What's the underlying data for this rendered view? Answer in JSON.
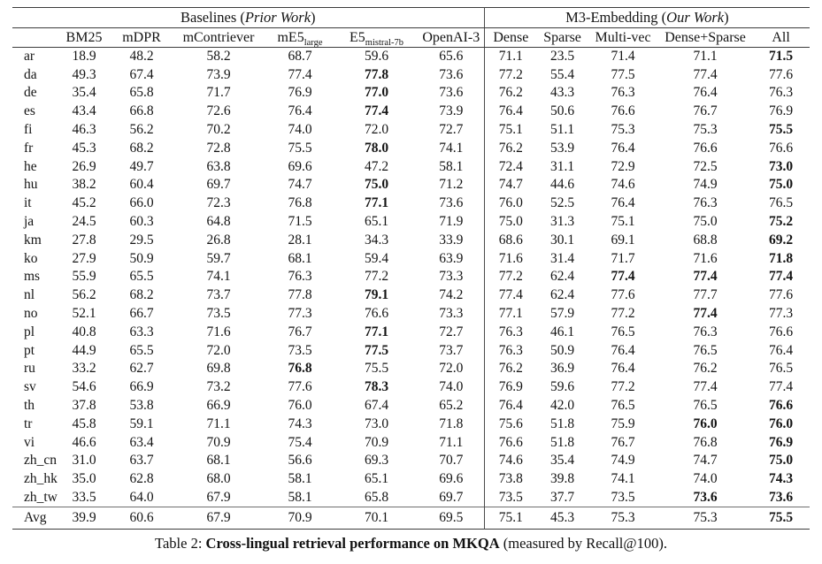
{
  "caption": {
    "prefix": "Table 2: ",
    "bold": "Cross-lingual retrieval performance on MKQA",
    "suffix": " (measured by Recall@100)."
  },
  "table": {
    "group_headers": {
      "baselines": {
        "pre": "Baselines (",
        "italic": "Prior Work",
        "post": ")"
      },
      "m3": {
        "pre": "M3-Embedding (",
        "italic": "Our Work",
        "post": ")"
      }
    },
    "columns": [
      {
        "label": "BM25",
        "sub": ""
      },
      {
        "label": "mDPR",
        "sub": ""
      },
      {
        "label": "mContriever",
        "sub": ""
      },
      {
        "label": "mE5",
        "sub": "large"
      },
      {
        "label": "E5",
        "sub": "mistral-7b"
      },
      {
        "label": "OpenAI-3",
        "sub": ""
      },
      {
        "label": "Dense",
        "sub": ""
      },
      {
        "label": "Sparse",
        "sub": ""
      },
      {
        "label": "Multi-vec",
        "sub": ""
      },
      {
        "label": "Dense+Sparse",
        "sub": ""
      },
      {
        "label": "All",
        "sub": ""
      }
    ],
    "rows": [
      {
        "lang": "ar",
        "values": [
          "18.9",
          "48.2",
          "58.2",
          "68.7",
          "59.6",
          "65.6",
          "71.1",
          "23.5",
          "71.4",
          "71.1",
          "71.5"
        ],
        "bold": [
          10
        ]
      },
      {
        "lang": "da",
        "values": [
          "49.3",
          "67.4",
          "73.9",
          "77.4",
          "77.8",
          "73.6",
          "77.2",
          "55.4",
          "77.5",
          "77.4",
          "77.6"
        ],
        "bold": [
          4
        ]
      },
      {
        "lang": "de",
        "values": [
          "35.4",
          "65.8",
          "71.7",
          "76.9",
          "77.0",
          "73.6",
          "76.2",
          "43.3",
          "76.3",
          "76.4",
          "76.3"
        ],
        "bold": [
          4
        ]
      },
      {
        "lang": "es",
        "values": [
          "43.4",
          "66.8",
          "72.6",
          "76.4",
          "77.4",
          "73.9",
          "76.4",
          "50.6",
          "76.6",
          "76.7",
          "76.9"
        ],
        "bold": [
          4
        ]
      },
      {
        "lang": "fi",
        "values": [
          "46.3",
          "56.2",
          "70.2",
          "74.0",
          "72.0",
          "72.7",
          "75.1",
          "51.1",
          "75.3",
          "75.3",
          "75.5"
        ],
        "bold": [
          10
        ]
      },
      {
        "lang": "fr",
        "values": [
          "45.3",
          "68.2",
          "72.8",
          "75.5",
          "78.0",
          "74.1",
          "76.2",
          "53.9",
          "76.4",
          "76.6",
          "76.6"
        ],
        "bold": [
          4
        ]
      },
      {
        "lang": "he",
        "values": [
          "26.9",
          "49.7",
          "63.8",
          "69.6",
          "47.2",
          "58.1",
          "72.4",
          "31.1",
          "72.9",
          "72.5",
          "73.0"
        ],
        "bold": [
          10
        ]
      },
      {
        "lang": "hu",
        "values": [
          "38.2",
          "60.4",
          "69.7",
          "74.7",
          "75.0",
          "71.2",
          "74.7",
          "44.6",
          "74.6",
          "74.9",
          "75.0"
        ],
        "bold": [
          4,
          10
        ]
      },
      {
        "lang": "it",
        "values": [
          "45.2",
          "66.0",
          "72.3",
          "76.8",
          "77.1",
          "73.6",
          "76.0",
          "52.5",
          "76.4",
          "76.3",
          "76.5"
        ],
        "bold": [
          4
        ]
      },
      {
        "lang": "ja",
        "values": [
          "24.5",
          "60.3",
          "64.8",
          "71.5",
          "65.1",
          "71.9",
          "75.0",
          "31.3",
          "75.1",
          "75.0",
          "75.2"
        ],
        "bold": [
          10
        ]
      },
      {
        "lang": "km",
        "values": [
          "27.8",
          "29.5",
          "26.8",
          "28.1",
          "34.3",
          "33.9",
          "68.6",
          "30.1",
          "69.1",
          "68.8",
          "69.2"
        ],
        "bold": [
          10
        ]
      },
      {
        "lang": "ko",
        "values": [
          "27.9",
          "50.9",
          "59.7",
          "68.1",
          "59.4",
          "63.9",
          "71.6",
          "31.4",
          "71.7",
          "71.6",
          "71.8"
        ],
        "bold": [
          10
        ]
      },
      {
        "lang": "ms",
        "values": [
          "55.9",
          "65.5",
          "74.1",
          "76.3",
          "77.2",
          "73.3",
          "77.2",
          "62.4",
          "77.4",
          "77.4",
          "77.4"
        ],
        "bold": [
          8,
          9,
          10
        ]
      },
      {
        "lang": "nl",
        "values": [
          "56.2",
          "68.2",
          "73.7",
          "77.8",
          "79.1",
          "74.2",
          "77.4",
          "62.4",
          "77.6",
          "77.7",
          "77.6"
        ],
        "bold": [
          4
        ]
      },
      {
        "lang": "no",
        "values": [
          "52.1",
          "66.7",
          "73.5",
          "77.3",
          "76.6",
          "73.3",
          "77.1",
          "57.9",
          "77.2",
          "77.4",
          "77.3"
        ],
        "bold": [
          9
        ]
      },
      {
        "lang": "pl",
        "values": [
          "40.8",
          "63.3",
          "71.6",
          "76.7",
          "77.1",
          "72.7",
          "76.3",
          "46.1",
          "76.5",
          "76.3",
          "76.6"
        ],
        "bold": [
          4
        ]
      },
      {
        "lang": "pt",
        "values": [
          "44.9",
          "65.5",
          "72.0",
          "73.5",
          "77.5",
          "73.7",
          "76.3",
          "50.9",
          "76.4",
          "76.5",
          "76.4"
        ],
        "bold": [
          4
        ]
      },
      {
        "lang": "ru",
        "values": [
          "33.2",
          "62.7",
          "69.8",
          "76.8",
          "75.5",
          "72.0",
          "76.2",
          "36.9",
          "76.4",
          "76.2",
          "76.5"
        ],
        "bold": [
          3
        ]
      },
      {
        "lang": "sv",
        "values": [
          "54.6",
          "66.9",
          "73.2",
          "77.6",
          "78.3",
          "74.0",
          "76.9",
          "59.6",
          "77.2",
          "77.4",
          "77.4"
        ],
        "bold": [
          4
        ]
      },
      {
        "lang": "th",
        "values": [
          "37.8",
          "53.8",
          "66.9",
          "76.0",
          "67.4",
          "65.2",
          "76.4",
          "42.0",
          "76.5",
          "76.5",
          "76.6"
        ],
        "bold": [
          10
        ]
      },
      {
        "lang": "tr",
        "values": [
          "45.8",
          "59.1",
          "71.1",
          "74.3",
          "73.0",
          "71.8",
          "75.6",
          "51.8",
          "75.9",
          "76.0",
          "76.0"
        ],
        "bold": [
          9,
          10
        ]
      },
      {
        "lang": "vi",
        "values": [
          "46.6",
          "63.4",
          "70.9",
          "75.4",
          "70.9",
          "71.1",
          "76.6",
          "51.8",
          "76.7",
          "76.8",
          "76.9"
        ],
        "bold": [
          10
        ]
      },
      {
        "lang": "zh_cn",
        "values": [
          "31.0",
          "63.7",
          "68.1",
          "56.6",
          "69.3",
          "70.7",
          "74.6",
          "35.4",
          "74.9",
          "74.7",
          "75.0"
        ],
        "bold": [
          10
        ]
      },
      {
        "lang": "zh_hk",
        "values": [
          "35.0",
          "62.8",
          "68.0",
          "58.1",
          "65.1",
          "69.6",
          "73.8",
          "39.8",
          "74.1",
          "74.0",
          "74.3"
        ],
        "bold": [
          10
        ]
      },
      {
        "lang": "zh_tw",
        "values": [
          "33.5",
          "64.0",
          "67.9",
          "58.1",
          "65.8",
          "69.7",
          "73.5",
          "37.7",
          "73.5",
          "73.6",
          "73.6"
        ],
        "bold": [
          9,
          10
        ]
      },
      {
        "lang": "Avg",
        "values": [
          "39.9",
          "60.6",
          "67.9",
          "70.9",
          "70.1",
          "69.5",
          "75.1",
          "45.3",
          "75.3",
          "75.3",
          "75.5"
        ],
        "bold": [
          10
        ],
        "is_avg": true
      }
    ]
  }
}
